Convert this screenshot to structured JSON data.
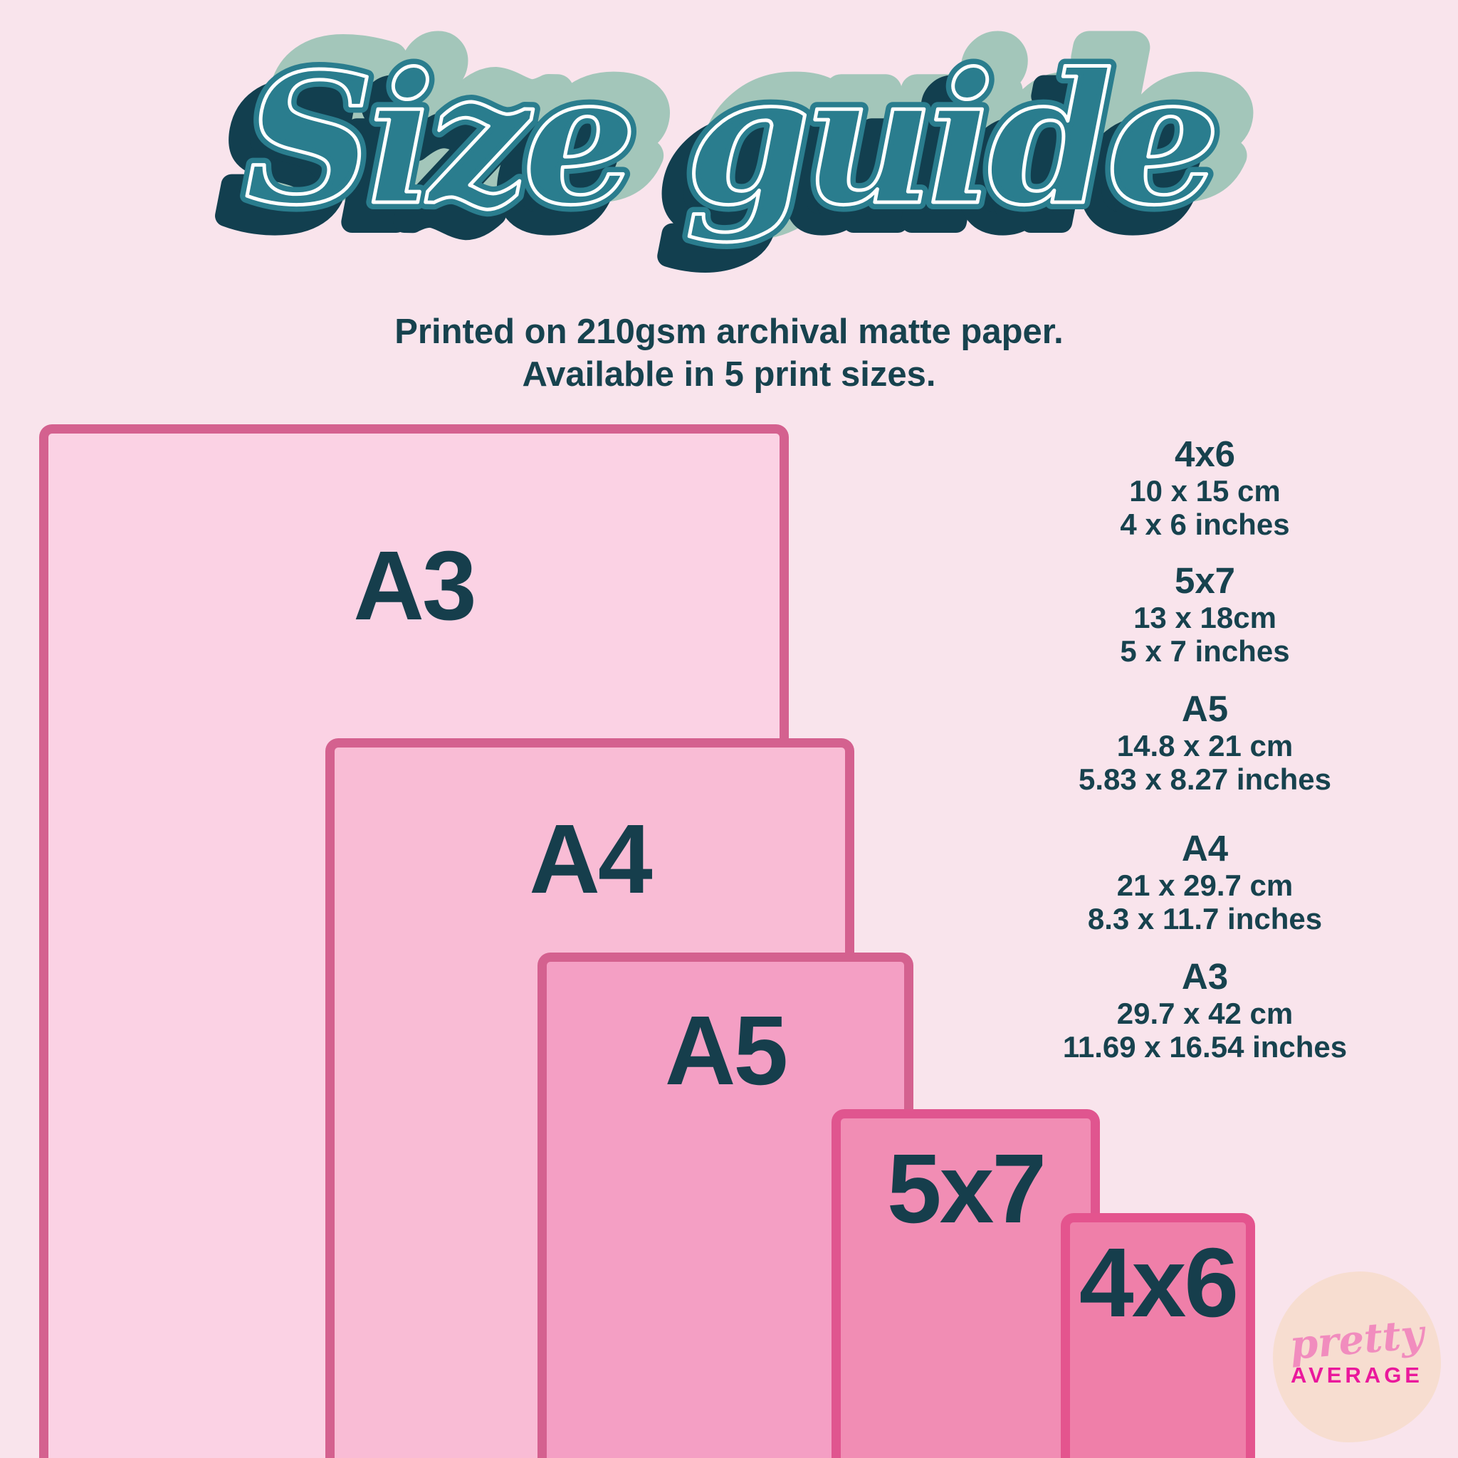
{
  "title": "Size guide",
  "subtitle": {
    "line1": "Printed on 210gsm archival matte paper.",
    "line2": "Available in 5 print sizes."
  },
  "rectangles": [
    {
      "label": "A3"
    },
    {
      "label": "A4"
    },
    {
      "label": "A5"
    },
    {
      "label": "5x7"
    },
    {
      "label": "4x6"
    }
  ],
  "size_list": [
    {
      "name": "4x6",
      "cm": "10 x 15 cm",
      "inches": "4 x 6 inches"
    },
    {
      "name": "5x7",
      "cm": "13 x 18cm",
      "inches": "5 x 7 inches"
    },
    {
      "name": "A5",
      "cm": "14.8 x 21 cm",
      "inches": "5.83 x 8.27 inches"
    },
    {
      "name": "A4",
      "cm": "21 x 29.7 cm",
      "inches": "8.3 x 11.7 inches"
    },
    {
      "name": "A3",
      "cm": "29.7 x 42 cm",
      "inches": "11.69 x 16.54 inches"
    }
  ],
  "logo": {
    "line1": "pretty",
    "line2": "AVERAGE"
  },
  "colors": {
    "background": "#f9e4ec",
    "text_dark": "#17424e",
    "label_dark": "#163e4c",
    "title_teal": "#2a7d8e",
    "title_sage": "#a3c6ba",
    "title_navy": "#123f4f",
    "title_inline_white": "#ffffff",
    "a3_fill": "#fbd2e4",
    "a4_fill": "#f9bcd5",
    "a5_fill": "#f49fc4",
    "print_5x7_fill": "#f18db4",
    "print_4x6_fill": "#ef7fa9",
    "border_pink": "#d4618f",
    "border_vivid_pink": "#e4548e",
    "logo_blob": "#f7ddd0",
    "logo_pretty_pink": "#f18cbe",
    "logo_average_magenta": "#ea189c"
  }
}
